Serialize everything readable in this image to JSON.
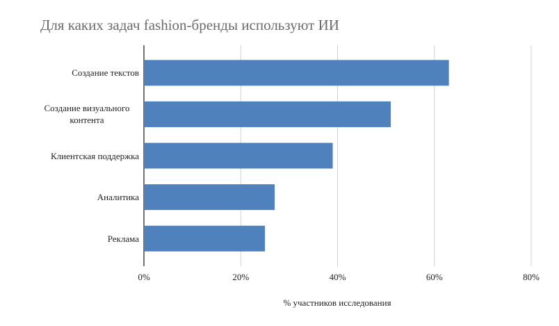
{
  "chart_data": {
    "type": "bar",
    "orientation": "horizontal",
    "title": "Для каких задач fashion-бренды используют ИИ",
    "x_label": "% участников исследования",
    "categories": [
      "Создание текстов",
      "Создание визуального контента",
      "Клиентская поддержка",
      "Аналитика",
      "Реклама"
    ],
    "values": [
      63,
      51,
      39,
      27,
      25
    ],
    "color": "#4f81bd",
    "xlim": [
      0,
      80
    ],
    "xticks": [
      {
        "value": 0,
        "label": "0%"
      },
      {
        "value": 20,
        "label": "20%"
      },
      {
        "value": 40,
        "label": "40%"
      },
      {
        "value": 60,
        "label": "60%"
      },
      {
        "value": 80,
        "label": "80%"
      }
    ],
    "grid": true
  }
}
